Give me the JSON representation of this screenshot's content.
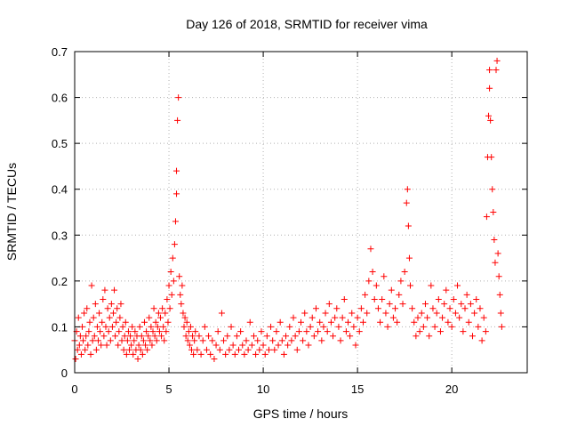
{
  "colors": {
    "series": "#ff0000",
    "axis": "#000000",
    "grid": "#b0b0b0",
    "background": "#ffffff"
  },
  "chart_data": {
    "type": "scatter",
    "title": "Day 126 of 2018, SRMTID for receiver vima",
    "xlabel": "GPS time / hours",
    "ylabel": "SRMTID / TECUs",
    "xlim": [
      0,
      24
    ],
    "ylim": [
      0,
      0.7
    ],
    "xticks": [
      0,
      5,
      10,
      15,
      20
    ],
    "xtick_labels": [
      "0",
      "5",
      "10",
      "15",
      "20"
    ],
    "yticks": [
      0,
      0.1,
      0.2,
      0.3,
      0.4,
      0.5,
      0.6,
      0.7
    ],
    "ytick_labels": [
      "0",
      "0.1",
      "0.2",
      "0.3",
      "0.4",
      "0.5",
      "0.6",
      "0.7"
    ],
    "grid": true,
    "marker": "plus",
    "series": [
      {
        "name": "SRMTID",
        "color": "#ff0000",
        "points": [
          [
            0.0,
            0.07
          ],
          [
            0.05,
            0.03
          ],
          [
            0.1,
            0.09
          ],
          [
            0.15,
            0.05
          ],
          [
            0.2,
            0.12
          ],
          [
            0.25,
            0.06
          ],
          [
            0.3,
            0.08
          ],
          [
            0.35,
            0.04
          ],
          [
            0.4,
            0.1
          ],
          [
            0.45,
            0.07
          ],
          [
            0.5,
            0.13
          ],
          [
            0.55,
            0.05
          ],
          [
            0.6,
            0.08
          ],
          [
            0.65,
            0.14
          ],
          [
            0.7,
            0.06
          ],
          [
            0.75,
            0.09
          ],
          [
            0.8,
            0.11
          ],
          [
            0.85,
            0.04
          ],
          [
            0.9,
            0.19
          ],
          [
            0.95,
            0.07
          ],
          [
            1.0,
            0.12
          ],
          [
            1.05,
            0.08
          ],
          [
            1.1,
            0.15
          ],
          [
            1.15,
            0.05
          ],
          [
            1.2,
            0.1
          ],
          [
            1.25,
            0.07
          ],
          [
            1.3,
            0.13
          ],
          [
            1.35,
            0.09
          ],
          [
            1.4,
            0.06
          ],
          [
            1.45,
            0.11
          ],
          [
            1.5,
            0.16
          ],
          [
            1.55,
            0.08
          ],
          [
            1.6,
            0.18
          ],
          [
            1.65,
            0.1
          ],
          [
            1.7,
            0.06
          ],
          [
            1.75,
            0.14
          ],
          [
            1.8,
            0.09
          ],
          [
            1.85,
            0.12
          ],
          [
            1.9,
            0.07
          ],
          [
            1.95,
            0.15
          ],
          [
            2.0,
            0.1
          ],
          [
            2.05,
            0.13
          ],
          [
            2.1,
            0.18
          ],
          [
            2.15,
            0.08
          ],
          [
            2.2,
            0.11
          ],
          [
            2.25,
            0.14
          ],
          [
            2.3,
            0.06
          ],
          [
            2.35,
            0.09
          ],
          [
            2.4,
            0.12
          ],
          [
            2.45,
            0.15
          ],
          [
            2.5,
            0.07
          ],
          [
            2.55,
            0.1
          ],
          [
            2.6,
            0.05
          ],
          [
            2.65,
            0.08
          ],
          [
            2.7,
            0.11
          ],
          [
            2.75,
            0.04
          ],
          [
            2.8,
            0.07
          ],
          [
            2.85,
            0.09
          ],
          [
            2.9,
            0.05
          ],
          [
            2.95,
            0.08
          ],
          [
            3.0,
            0.06
          ],
          [
            3.05,
            0.1
          ],
          [
            3.1,
            0.04
          ],
          [
            3.15,
            0.07
          ],
          [
            3.2,
            0.09
          ],
          [
            3.25,
            0.05
          ],
          [
            3.3,
            0.08
          ],
          [
            3.35,
            0.03
          ],
          [
            3.4,
            0.06
          ],
          [
            3.45,
            0.1
          ],
          [
            3.5,
            0.05
          ],
          [
            3.55,
            0.08
          ],
          [
            3.6,
            0.04
          ],
          [
            3.65,
            0.07
          ],
          [
            3.7,
            0.11
          ],
          [
            3.75,
            0.06
          ],
          [
            3.8,
            0.09
          ],
          [
            3.85,
            0.05
          ],
          [
            3.9,
            0.08
          ],
          [
            3.95,
            0.12
          ],
          [
            4.0,
            0.07
          ],
          [
            4.05,
            0.1
          ],
          [
            4.1,
            0.06
          ],
          [
            4.15,
            0.09
          ],
          [
            4.2,
            0.14
          ],
          [
            4.25,
            0.08
          ],
          [
            4.3,
            0.11
          ],
          [
            4.35,
            0.07
          ],
          [
            4.4,
            0.1
          ],
          [
            4.45,
            0.13
          ],
          [
            4.5,
            0.09
          ],
          [
            4.55,
            0.12
          ],
          [
            4.6,
            0.08
          ],
          [
            4.65,
            0.14
          ],
          [
            4.7,
            0.1
          ],
          [
            4.75,
            0.07
          ],
          [
            4.8,
            0.13
          ],
          [
            4.85,
            0.09
          ],
          [
            4.9,
            0.16
          ],
          [
            4.95,
            0.11
          ],
          [
            5.0,
            0.19
          ],
          [
            5.05,
            0.14
          ],
          [
            5.1,
            0.22
          ],
          [
            5.15,
            0.17
          ],
          [
            5.2,
            0.25
          ],
          [
            5.25,
            0.2
          ],
          [
            5.3,
            0.28
          ],
          [
            5.35,
            0.33
          ],
          [
            5.4,
            0.44
          ],
          [
            5.45,
            0.55
          ],
          [
            5.5,
            0.6
          ],
          [
            5.4,
            0.39
          ],
          [
            5.55,
            0.21
          ],
          [
            5.6,
            0.17
          ],
          [
            5.65,
            0.15
          ],
          [
            5.7,
            0.19
          ],
          [
            5.75,
            0.13
          ],
          [
            5.8,
            0.1
          ],
          [
            5.85,
            0.12
          ],
          [
            5.9,
            0.08
          ],
          [
            5.95,
            0.11
          ],
          [
            6.0,
            0.07
          ],
          [
            6.05,
            0.09
          ],
          [
            6.1,
            0.06
          ],
          [
            6.15,
            0.1
          ],
          [
            6.2,
            0.05
          ],
          [
            6.25,
            0.08
          ],
          [
            6.3,
            0.04
          ],
          [
            6.35,
            0.07
          ],
          [
            6.4,
            0.09
          ],
          [
            6.5,
            0.05
          ],
          [
            6.6,
            0.08
          ],
          [
            6.7,
            0.04
          ],
          [
            6.8,
            0.07
          ],
          [
            6.9,
            0.1
          ],
          [
            7.0,
            0.05
          ],
          [
            7.1,
            0.08
          ],
          [
            7.2,
            0.04
          ],
          [
            7.3,
            0.07
          ],
          [
            7.4,
            0.03
          ],
          [
            7.5,
            0.06
          ],
          [
            7.6,
            0.09
          ],
          [
            7.7,
            0.05
          ],
          [
            7.8,
            0.13
          ],
          [
            7.9,
            0.07
          ],
          [
            8.0,
            0.04
          ],
          [
            8.1,
            0.08
          ],
          [
            8.2,
            0.05
          ],
          [
            8.3,
            0.1
          ],
          [
            8.4,
            0.06
          ],
          [
            8.5,
            0.04
          ],
          [
            8.6,
            0.08
          ],
          [
            8.7,
            0.05
          ],
          [
            8.8,
            0.09
          ],
          [
            8.9,
            0.06
          ],
          [
            9.0,
            0.04
          ],
          [
            9.1,
            0.07
          ],
          [
            9.2,
            0.05
          ],
          [
            9.3,
            0.11
          ],
          [
            9.4,
            0.06
          ],
          [
            9.5,
            0.08
          ],
          [
            9.6,
            0.04
          ],
          [
            9.7,
            0.07
          ],
          [
            9.8,
            0.05
          ],
          [
            9.9,
            0.09
          ],
          [
            10.0,
            0.06
          ],
          [
            10.1,
            0.04
          ],
          [
            10.2,
            0.08
          ],
          [
            10.3,
            0.05
          ],
          [
            10.4,
            0.1
          ],
          [
            10.5,
            0.07
          ],
          [
            10.6,
            0.05
          ],
          [
            10.7,
            0.09
          ],
          [
            10.8,
            0.06
          ],
          [
            10.9,
            0.11
          ],
          [
            11.0,
            0.07
          ],
          [
            11.1,
            0.04
          ],
          [
            11.2,
            0.08
          ],
          [
            11.3,
            0.06
          ],
          [
            11.4,
            0.1
          ],
          [
            11.5,
            0.07
          ],
          [
            11.6,
            0.12
          ],
          [
            11.7,
            0.08
          ],
          [
            11.8,
            0.05
          ],
          [
            11.9,
            0.09
          ],
          [
            12.0,
            0.11
          ],
          [
            12.1,
            0.07
          ],
          [
            12.2,
            0.13
          ],
          [
            12.3,
            0.09
          ],
          [
            12.4,
            0.06
          ],
          [
            12.5,
            0.1
          ],
          [
            12.6,
            0.12
          ],
          [
            12.7,
            0.08
          ],
          [
            12.8,
            0.14
          ],
          [
            12.9,
            0.09
          ],
          [
            13.0,
            0.11
          ],
          [
            13.1,
            0.07
          ],
          [
            13.2,
            0.1
          ],
          [
            13.3,
            0.13
          ],
          [
            13.4,
            0.09
          ],
          [
            13.5,
            0.15
          ],
          [
            13.6,
            0.11
          ],
          [
            13.7,
            0.08
          ],
          [
            13.8,
            0.12
          ],
          [
            13.9,
            0.14
          ],
          [
            14.0,
            0.1
          ],
          [
            14.1,
            0.07
          ],
          [
            14.2,
            0.12
          ],
          [
            14.3,
            0.16
          ],
          [
            14.4,
            0.09
          ],
          [
            14.5,
            0.11
          ],
          [
            14.6,
            0.08
          ],
          [
            14.7,
            0.13
          ],
          [
            14.8,
            0.1
          ],
          [
            14.9,
            0.06
          ],
          [
            15.0,
            0.12
          ],
          [
            15.1,
            0.09
          ],
          [
            15.2,
            0.14
          ],
          [
            15.3,
            0.11
          ],
          [
            15.4,
            0.17
          ],
          [
            15.5,
            0.13
          ],
          [
            15.6,
            0.2
          ],
          [
            15.7,
            0.27
          ],
          [
            15.8,
            0.22
          ],
          [
            15.9,
            0.16
          ],
          [
            16.0,
            0.19
          ],
          [
            16.1,
            0.14
          ],
          [
            16.2,
            0.11
          ],
          [
            16.3,
            0.16
          ],
          [
            16.4,
            0.21
          ],
          [
            16.5,
            0.13
          ],
          [
            16.6,
            0.1
          ],
          [
            16.7,
            0.15
          ],
          [
            16.8,
            0.18
          ],
          [
            16.9,
            0.12
          ],
          [
            17.0,
            0.14
          ],
          [
            17.1,
            0.11
          ],
          [
            17.2,
            0.17
          ],
          [
            17.3,
            0.2
          ],
          [
            17.4,
            0.15
          ],
          [
            17.5,
            0.22
          ],
          [
            17.6,
            0.37
          ],
          [
            17.65,
            0.4
          ],
          [
            17.7,
            0.32
          ],
          [
            17.75,
            0.25
          ],
          [
            17.8,
            0.19
          ],
          [
            17.9,
            0.14
          ],
          [
            18.0,
            0.11
          ],
          [
            18.1,
            0.08
          ],
          [
            18.2,
            0.12
          ],
          [
            18.3,
            0.09
          ],
          [
            18.4,
            0.13
          ],
          [
            18.5,
            0.1
          ],
          [
            18.6,
            0.15
          ],
          [
            18.7,
            0.12
          ],
          [
            18.8,
            0.08
          ],
          [
            18.9,
            0.19
          ],
          [
            19.0,
            0.14
          ],
          [
            19.1,
            0.1
          ],
          [
            19.2,
            0.13
          ],
          [
            19.3,
            0.16
          ],
          [
            19.4,
            0.09
          ],
          [
            19.5,
            0.12
          ],
          [
            19.6,
            0.15
          ],
          [
            19.7,
            0.18
          ],
          [
            19.8,
            0.11
          ],
          [
            19.9,
            0.14
          ],
          [
            20.0,
            0.1
          ],
          [
            20.1,
            0.16
          ],
          [
            20.2,
            0.13
          ],
          [
            20.3,
            0.19
          ],
          [
            20.4,
            0.12
          ],
          [
            20.5,
            0.15
          ],
          [
            20.6,
            0.09
          ],
          [
            20.7,
            0.14
          ],
          [
            20.8,
            0.17
          ],
          [
            20.9,
            0.11
          ],
          [
            21.0,
            0.15
          ],
          [
            21.1,
            0.08
          ],
          [
            21.2,
            0.13
          ],
          [
            21.3,
            0.16
          ],
          [
            21.4,
            0.1
          ],
          [
            21.5,
            0.14
          ],
          [
            21.6,
            0.07
          ],
          [
            21.7,
            0.12
          ],
          [
            21.8,
            0.09
          ],
          [
            21.85,
            0.34
          ],
          [
            21.9,
            0.47
          ],
          [
            21.95,
            0.56
          ],
          [
            22.0,
            0.62
          ],
          [
            22.0,
            0.66
          ],
          [
            22.05,
            0.55
          ],
          [
            22.1,
            0.47
          ],
          [
            22.15,
            0.4
          ],
          [
            22.2,
            0.35
          ],
          [
            22.25,
            0.29
          ],
          [
            22.3,
            0.24
          ],
          [
            22.35,
            0.66
          ],
          [
            22.4,
            0.68
          ],
          [
            22.45,
            0.26
          ],
          [
            22.5,
            0.21
          ],
          [
            22.55,
            0.17
          ],
          [
            22.6,
            0.13
          ],
          [
            22.65,
            0.1
          ]
        ]
      }
    ]
  }
}
